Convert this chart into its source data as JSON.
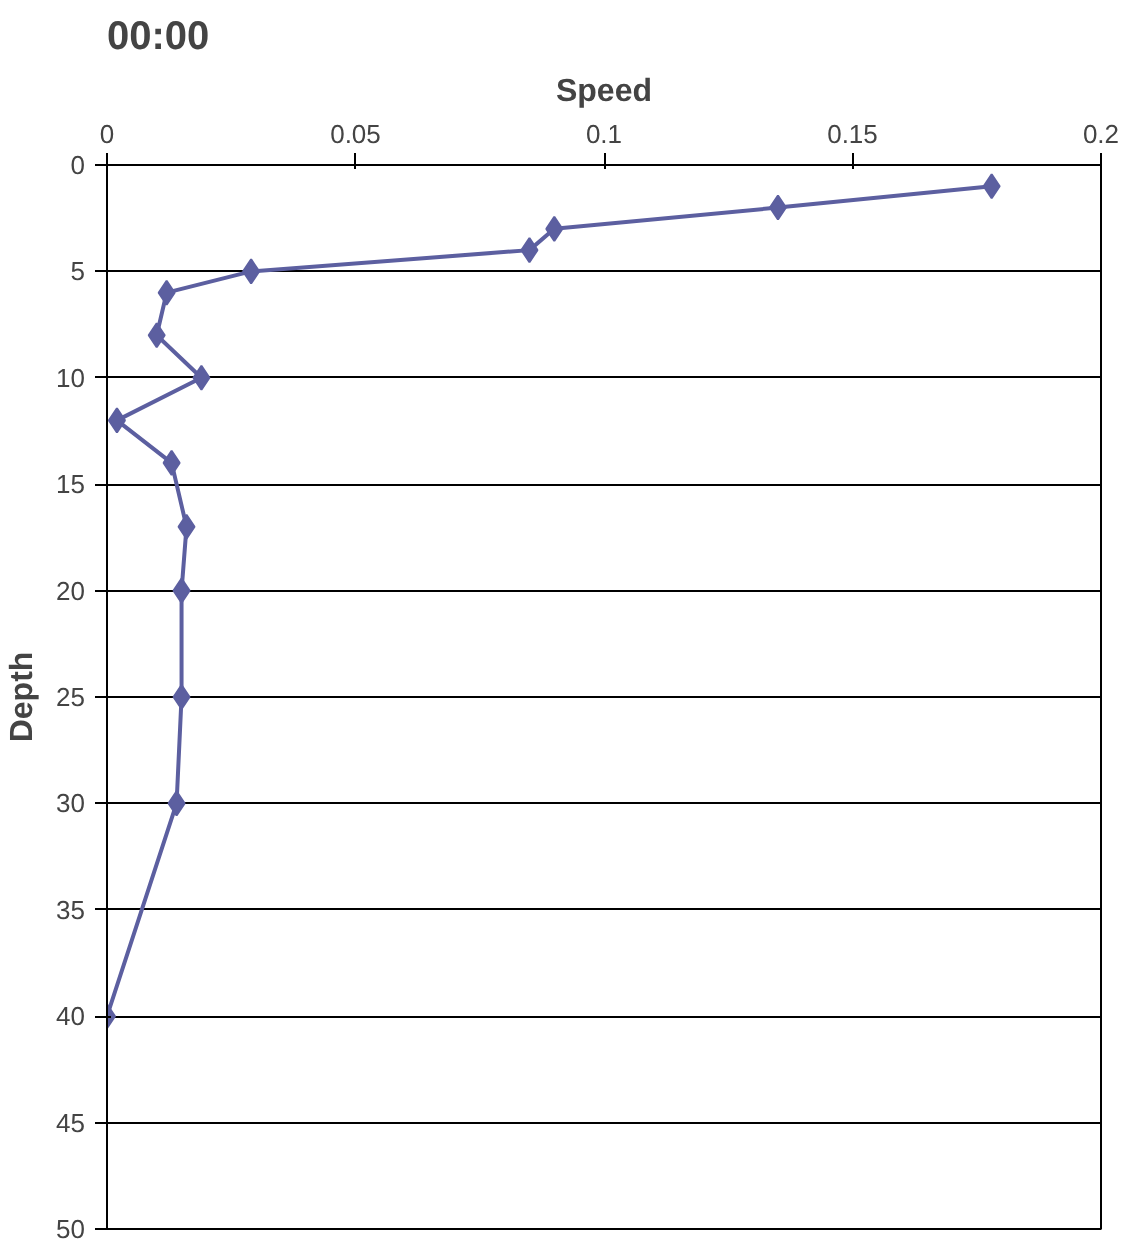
{
  "chart_data": {
    "type": "line",
    "title": "00:00",
    "xlabel": "Speed",
    "ylabel": "Depth",
    "x": [
      0.178,
      0.135,
      0.09,
      0.085,
      0.029,
      0.012,
      0.01,
      0.019,
      0.002,
      0.013,
      0.016,
      0.015,
      0.015,
      0.014,
      0.0
    ],
    "series": [
      {
        "color": "#5c5fa0",
        "values": [
          1,
          2,
          3,
          4,
          5,
          6,
          8,
          10,
          12,
          14,
          17,
          20,
          25,
          30,
          40
        ]
      }
    ],
    "xlim": [
      0,
      0.2
    ],
    "xticks": [
      0,
      0.05,
      0.1,
      0.15,
      0.2
    ],
    "ylim": [
      50,
      0
    ],
    "yticks": [
      0,
      5,
      10,
      15,
      20,
      25,
      30,
      35,
      40,
      45,
      50
    ],
    "grid": "y",
    "marker": "diamond",
    "line_style": "solid"
  }
}
